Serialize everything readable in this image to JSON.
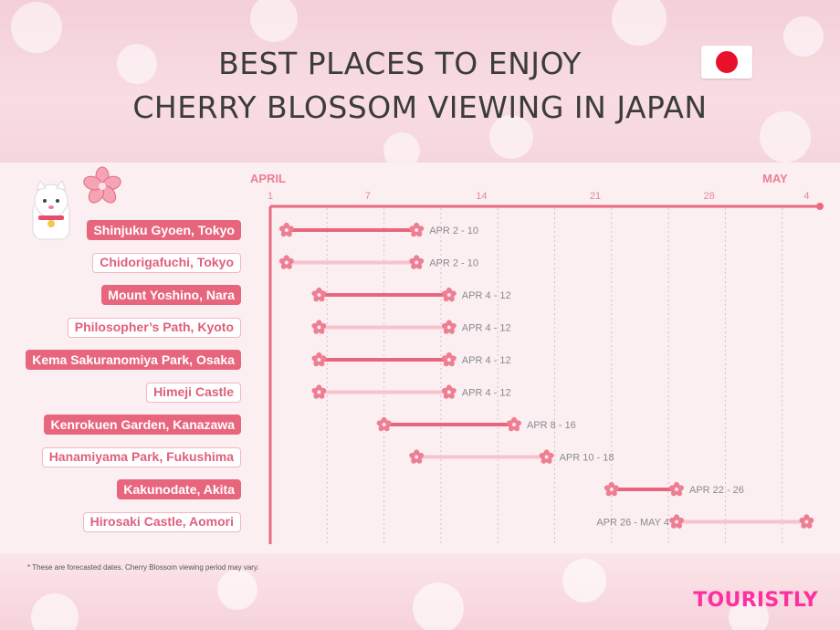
{
  "title": {
    "line1": "BEST PLACES TO ENJOY",
    "line2": "CHERRY BLOSSOM VIEWING IN JAPAN"
  },
  "footnote": "* These are forecasted dates. Cherry Blossom viewing period may vary.",
  "brand": "TOURISTLY",
  "colors": {
    "dark_bar": "#e8667d",
    "light_bar": "#f6c3cf",
    "axis": "#ea6b80",
    "flag_red": "#e8102b",
    "brand": "#ff2f9e"
  },
  "chart_data": {
    "type": "timeline",
    "month_labels": [
      {
        "label": "APRIL",
        "day": 1
      },
      {
        "label": "MAY",
        "day": 31
      }
    ],
    "ticks": [
      {
        "label": "1",
        "day": 1
      },
      {
        "label": "7",
        "day": 7
      },
      {
        "label": "14",
        "day": 14
      },
      {
        "label": "21",
        "day": 21
      },
      {
        "label": "28",
        "day": 28
      },
      {
        "label": "4",
        "day": 34
      }
    ],
    "x_range": [
      "2019-04-01",
      "2019-05-04"
    ],
    "grid": "vertical dotted",
    "rows": [
      {
        "place": "Shinjuku Gyoen, Tokyo",
        "start": 2,
        "end": 10,
        "label": "APR 2 - 10",
        "style": "dark"
      },
      {
        "place": "Chidorigafuchi, Tokyo",
        "start": 2,
        "end": 10,
        "label": "APR 2 - 10",
        "style": "light"
      },
      {
        "place": "Mount Yoshino, Nara",
        "start": 4,
        "end": 12,
        "label": "APR 4 - 12",
        "style": "dark"
      },
      {
        "place": "Philosopher’s Path, Kyoto",
        "start": 4,
        "end": 12,
        "label": "APR 4 - 12",
        "style": "light"
      },
      {
        "place": "Kema Sakuranomiya Park, Osaka",
        "start": 4,
        "end": 12,
        "label": "APR 4 - 12",
        "style": "dark"
      },
      {
        "place": "Himeji Castle",
        "start": 4,
        "end": 12,
        "label": "APR 4 - 12",
        "style": "light"
      },
      {
        "place": "Kenrokuen Garden, Kanazawa",
        "start": 8,
        "end": 16,
        "label": "APR 8 - 16",
        "style": "dark"
      },
      {
        "place": "Hanamiyama Park, Fukushima",
        "start": 10,
        "end": 18,
        "label": "APR 10 - 18",
        "style": "light"
      },
      {
        "place": "Kakunodate, Akita",
        "start": 22,
        "end": 26,
        "label": "APR 22 - 26",
        "style": "dark"
      },
      {
        "place": "Hirosaki Castle, Aomori",
        "start": 26,
        "end": 34,
        "label": "APR 26 - MAY 4",
        "style": "light",
        "label_side": "left"
      }
    ]
  }
}
